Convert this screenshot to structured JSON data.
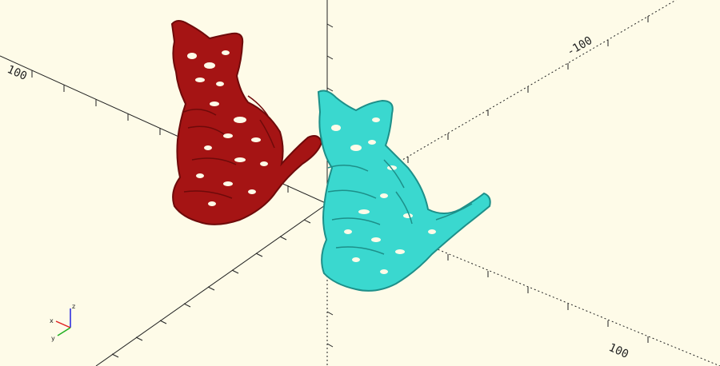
{
  "viewport": {
    "background": "#fefbe8",
    "axis_labels": {
      "x_negative": "-100",
      "x_positive": "100",
      "y_positive": "100"
    },
    "gizmo": {
      "x": "x",
      "y": "y",
      "z": "z"
    },
    "gizmo_colors": {
      "x": "#e02020",
      "y": "#20b020",
      "z": "#2020e0"
    }
  },
  "models": [
    {
      "name": "red-cat",
      "color": "#a51414",
      "dark": "#6e0a0a"
    },
    {
      "name": "cyan-cat",
      "color": "#3ad8cf",
      "dark": "#1d8f89"
    }
  ]
}
